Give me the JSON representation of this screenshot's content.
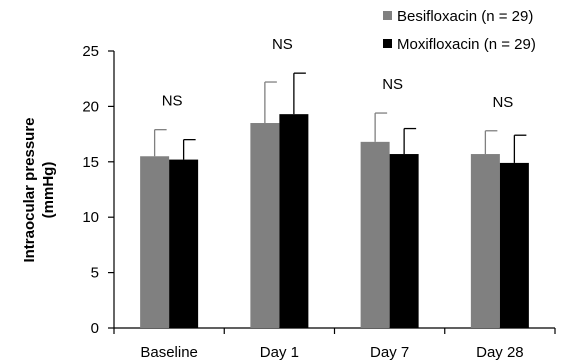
{
  "chart_data": {
    "type": "bar",
    "title": "",
    "xlabel": "",
    "ylabel": [
      "Intraocular pressure",
      "(mmHg)"
    ],
    "categories": [
      "Baseline",
      "Day 1",
      "Day 7",
      "Day 28"
    ],
    "series": [
      {
        "name": "Besifloxacin (n = 29)",
        "color": "#808080",
        "values": [
          15.5,
          18.5,
          16.8,
          15.7
        ],
        "errors": [
          2.4,
          3.7,
          2.6,
          2.1
        ]
      },
      {
        "name": "Moxifloxacin (n = 29)",
        "color": "#000000",
        "values": [
          15.2,
          19.3,
          15.7,
          14.9
        ],
        "errors": [
          1.8,
          3.7,
          2.3,
          2.5
        ]
      }
    ],
    "ylim": [
      0,
      25
    ],
    "yticks": [
      0,
      5,
      10,
      15,
      20,
      25
    ],
    "annotations": [
      "NS",
      "NS",
      "NS",
      "NS"
    ],
    "legend_position": "top-right",
    "grid": false
  }
}
